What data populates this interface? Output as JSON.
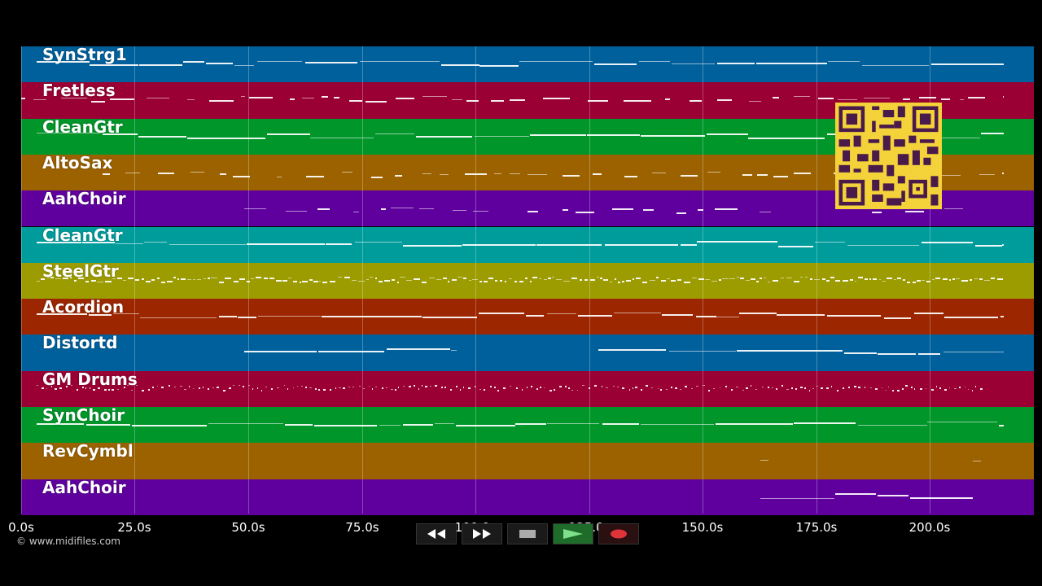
{
  "tracks": [
    {
      "name": "SynStrg1",
      "color": "#00609c"
    },
    {
      "name": "Fretless",
      "color": "#9a0033"
    },
    {
      "name": "CleanGtr",
      "color": "#00962a"
    },
    {
      "name": "AltoSax",
      "color": "#9c6200"
    },
    {
      "name": "AahChoir",
      "color": "#5f009e"
    },
    {
      "name": "CleanGtr",
      "color": "#009c9c"
    },
    {
      "name": "SteelGtr",
      "color": "#9c9c00"
    },
    {
      "name": "Acordion",
      "color": "#9c2600"
    },
    {
      "name": "Distortd",
      "color": "#00609c"
    },
    {
      "name": "GM Drums",
      "color": "#9a0033"
    },
    {
      "name": "SynChoir",
      "color": "#00962a"
    },
    {
      "name": "RevCymbl",
      "color": "#9c6200"
    },
    {
      "name": "AahChoir",
      "color": "#5f009e"
    }
  ],
  "timeline": {
    "ticks": [
      "0.0s",
      "25.0s",
      "50.0s",
      "75.0s",
      "100.0s",
      "125.0s",
      "150.0s",
      "175.0s",
      "200.0s"
    ]
  },
  "controls": {
    "rewind": "rewind-icon",
    "fast_forward": "fast-forward-icon",
    "stop": "stop-icon",
    "play": "play-icon",
    "record": "record-icon"
  },
  "footer": {
    "copyright": "© www.midifiles.com"
  }
}
